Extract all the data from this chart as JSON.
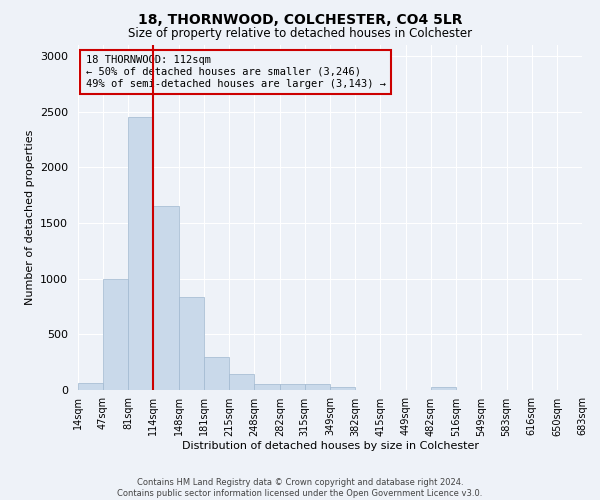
{
  "title1": "18, THORNWOOD, COLCHESTER, CO4 5LR",
  "title2": "Size of property relative to detached houses in Colchester",
  "xlabel": "Distribution of detached houses by size in Colchester",
  "ylabel": "Number of detached properties",
  "annotation_line1": "18 THORNWOOD: 112sqm",
  "annotation_line2": "← 50% of detached houses are smaller (3,246)",
  "annotation_line3": "49% of semi-detached houses are larger (3,143) →",
  "bin_edges": [
    14,
    47,
    81,
    114,
    148,
    181,
    215,
    248,
    282,
    315,
    349,
    382,
    415,
    449,
    482,
    516,
    549,
    583,
    616,
    650,
    683
  ],
  "bar_heights": [
    60,
    1000,
    2450,
    1650,
    840,
    300,
    140,
    55,
    55,
    55,
    25,
    0,
    0,
    0,
    30,
    0,
    0,
    0,
    0,
    0
  ],
  "bar_color": "#c9d9ea",
  "bar_edge_color": "#a0b8d0",
  "vline_color": "#cc0000",
  "vline_x": 114,
  "annotation_box_color": "#cc0000",
  "background_color": "#eef2f8",
  "grid_color": "#ffffff",
  "footer_line1": "Contains HM Land Registry data © Crown copyright and database right 2024.",
  "footer_line2": "Contains public sector information licensed under the Open Government Licence v3.0.",
  "ylim": [
    0,
    3100
  ],
  "yticks": [
    0,
    500,
    1000,
    1500,
    2000,
    2500,
    3000
  ]
}
